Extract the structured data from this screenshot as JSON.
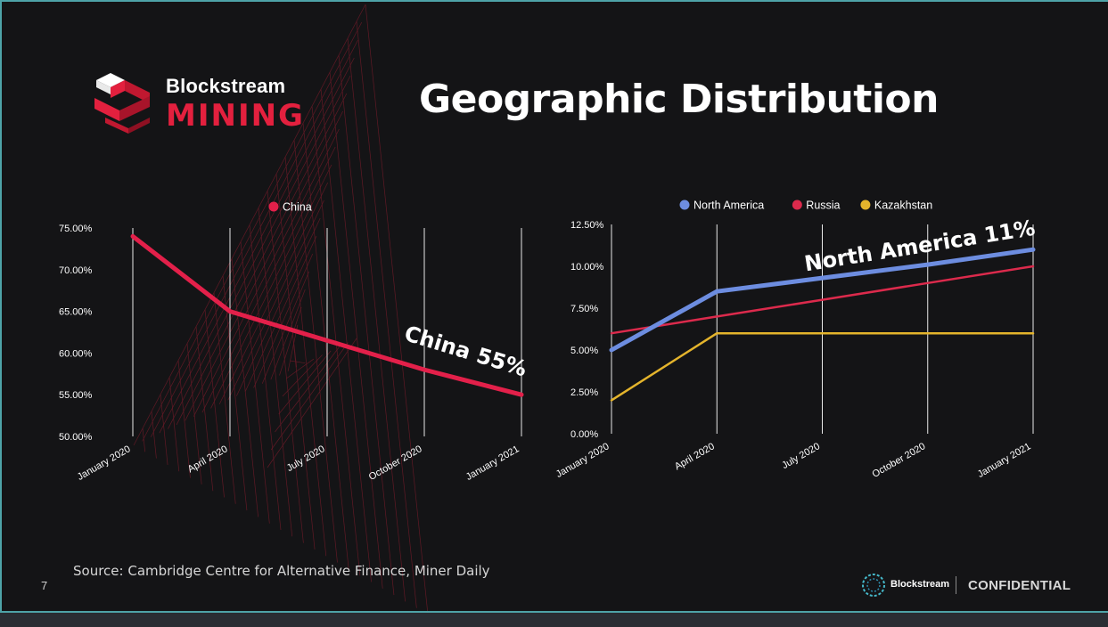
{
  "slide": {
    "title": "Geographic Distribution",
    "page_number": "7",
    "source": "Source: Cambridge Centre for Alternative Finance, Miner Daily",
    "confidential": "CONFIDENTIAL"
  },
  "logo": {
    "brand": "Blockstream",
    "product": "MINING",
    "color": "#e3203e"
  },
  "footer": {
    "brand": "Blockstream",
    "icon": "blockstream-ring-icon"
  },
  "chart_data": [
    {
      "type": "line",
      "title": "",
      "xlabel": "",
      "ylabel": "",
      "categories": [
        "January 2020",
        "April 2020",
        "July 2020",
        "October 2020",
        "January 2021"
      ],
      "y_ticks": [
        "50.00%",
        "55.00%",
        "60.00%",
        "65.00%",
        "70.00%",
        "75.00%"
      ],
      "ylim": [
        50,
        75
      ],
      "grid": "vertical",
      "legend": "top-center",
      "series": [
        {
          "name": "China",
          "color": "#e3204a",
          "values": [
            74,
            65,
            61.5,
            58,
            55
          ]
        }
      ],
      "annotation": "China 55%"
    },
    {
      "type": "line",
      "title": "",
      "xlabel": "",
      "ylabel": "",
      "categories": [
        "January 2020",
        "April 2020",
        "July 2020",
        "October 2020",
        "January 2021"
      ],
      "y_ticks": [
        "0.00%",
        "2.50%",
        "5.00%",
        "7.50%",
        "10.00%",
        "12.50%"
      ],
      "ylim": [
        0,
        12.5
      ],
      "grid": "vertical",
      "legend": "top-center",
      "series": [
        {
          "name": "North America",
          "color": "#6d8de0",
          "values": [
            5,
            8.5,
            9.3,
            10.1,
            11
          ]
        },
        {
          "name": "Russia",
          "color": "#dc2a4c",
          "values": [
            6,
            7,
            8,
            9,
            10
          ]
        },
        {
          "name": "Kazakhstan",
          "color": "#e4b42c",
          "values": [
            2,
            6,
            6,
            6,
            6
          ]
        }
      ],
      "annotation": "North America 11%"
    }
  ]
}
